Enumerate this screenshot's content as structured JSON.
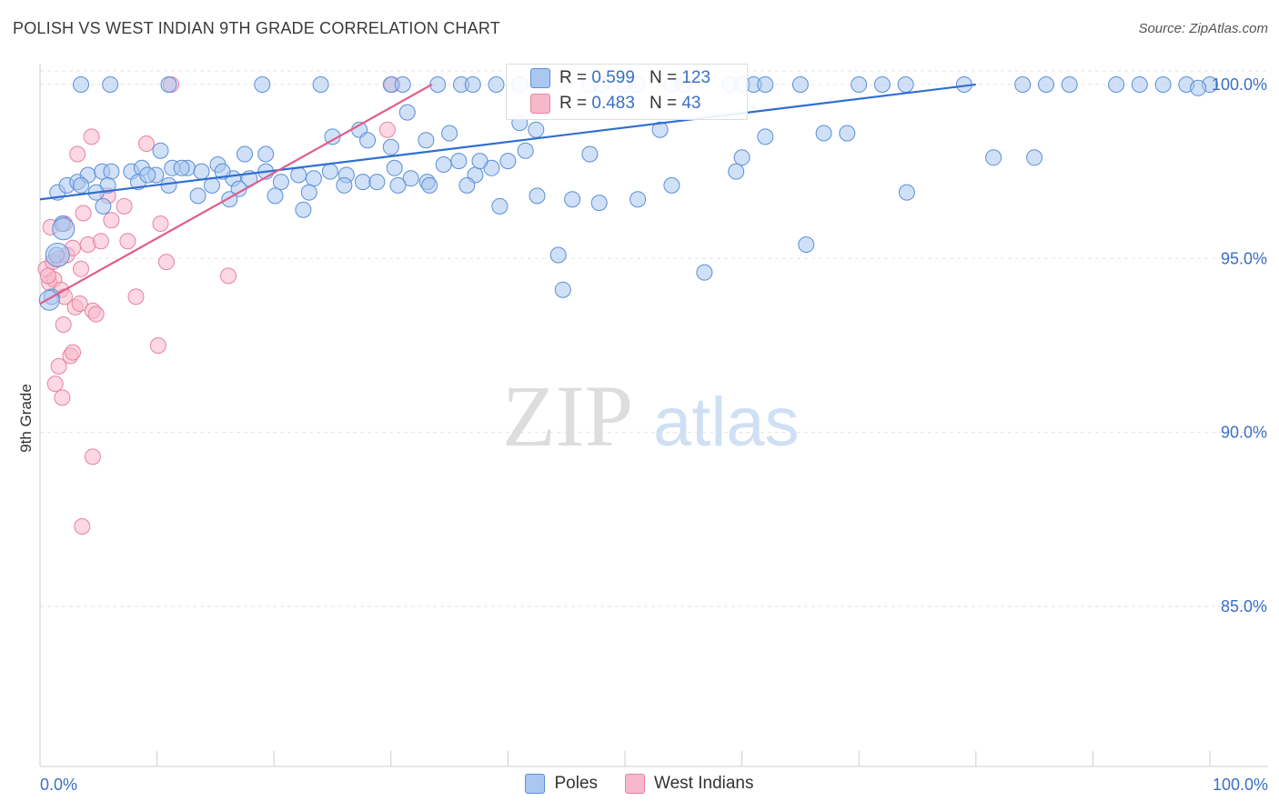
{
  "header": {
    "title": "POLISH VS WEST INDIAN 9TH GRADE CORRELATION CHART",
    "source": "Source: ZipAtlas.com"
  },
  "watermark": {
    "zip": "ZIP",
    "atlas": "atlas"
  },
  "colors": {
    "poles_fill": "#a9c7f0",
    "poles_stroke": "#5b8fd6",
    "poles_line": "#2f6fd1",
    "wi_fill": "#f7b8cc",
    "wi_stroke": "#e8829f",
    "wi_line": "#e05c8a",
    "axis_text": "#3a6fc4",
    "grid": "#e3e3e3"
  },
  "stats": {
    "poles": {
      "r_label": "R =",
      "r_value": "0.599",
      "n_label": "N =",
      "n_value": "123"
    },
    "west_indians": {
      "r_label": "R =",
      "r_value": "0.483",
      "n_label": "N =",
      "n_value": "43"
    }
  },
  "legend": {
    "poles": "Poles",
    "west_indians": "West Indians"
  },
  "chart_data": {
    "type": "scatter",
    "title": "POLISH VS WEST INDIAN 9TH GRADE CORRELATION CHART",
    "xlabel": "",
    "ylabel": "9th Grade",
    "xlim": [
      0,
      100
    ],
    "ylim": [
      80.4,
      100.6
    ],
    "x_tick_labels": [
      "0.0%",
      "100.0%"
    ],
    "y_ticks": [
      85,
      90,
      95,
      100
    ],
    "y_tick_labels": [
      "85.0%",
      "90.0%",
      "95.0%",
      "100.0%"
    ],
    "grid": true,
    "legend_position": "bottom-center",
    "series": [
      {
        "name": "Poles",
        "trend": {
          "x": [
            0,
            80
          ],
          "y": [
            96.7,
            100.0
          ]
        },
        "points": [
          [
            3.5,
            100
          ],
          [
            6,
            100
          ],
          [
            11,
            100
          ],
          [
            19,
            100
          ],
          [
            24,
            100
          ],
          [
            30,
            100
          ],
          [
            31,
            100
          ],
          [
            34,
            100
          ],
          [
            36,
            100
          ],
          [
            37,
            100
          ],
          [
            39,
            100
          ],
          [
            41,
            100
          ],
          [
            47,
            100
          ],
          [
            48,
            100
          ],
          [
            50,
            100
          ],
          [
            51,
            100
          ],
          [
            54,
            100
          ],
          [
            55,
            100
          ],
          [
            59,
            100
          ],
          [
            60,
            100
          ],
          [
            61,
            100
          ],
          [
            62,
            100
          ],
          [
            65,
            100
          ],
          [
            70,
            100
          ],
          [
            72,
            100
          ],
          [
            74,
            100
          ],
          [
            79,
            100
          ],
          [
            84,
            100
          ],
          [
            86,
            100
          ],
          [
            88,
            100
          ],
          [
            92,
            100
          ],
          [
            94,
            100
          ],
          [
            96,
            100
          ],
          [
            98,
            100
          ],
          [
            100,
            100
          ],
          [
            99,
            99.9
          ],
          [
            31.4,
            99.2
          ],
          [
            33,
            98.4
          ],
          [
            53,
            98.7
          ],
          [
            62,
            98.5
          ],
          [
            67,
            98.6
          ],
          [
            69,
            98.6
          ],
          [
            41,
            98.9
          ],
          [
            27.3,
            98.7
          ],
          [
            35,
            98.6
          ],
          [
            25,
            98.5
          ],
          [
            28,
            98.4
          ],
          [
            30,
            98.2
          ],
          [
            10.3,
            98.1
          ],
          [
            19.3,
            98
          ],
          [
            17.5,
            98
          ],
          [
            47,
            98
          ],
          [
            60,
            97.9
          ],
          [
            85,
            97.9
          ],
          [
            1.5,
            96.9
          ],
          [
            2.3,
            97.1
          ],
          [
            3.2,
            97.2
          ],
          [
            4.1,
            97.4
          ],
          [
            5.3,
            97.5
          ],
          [
            6.1,
            97.5
          ],
          [
            7.8,
            97.5
          ],
          [
            8.7,
            97.6
          ],
          [
            9.9,
            97.4
          ],
          [
            11.3,
            97.6
          ],
          [
            12.6,
            97.6
          ],
          [
            13.8,
            97.5
          ],
          [
            15.2,
            97.7
          ],
          [
            16.5,
            97.3
          ],
          [
            17.9,
            97.3
          ],
          [
            19.3,
            97.5
          ],
          [
            20.6,
            97.2
          ],
          [
            22.1,
            97.4
          ],
          [
            23.4,
            97.3
          ],
          [
            24.8,
            97.5
          ],
          [
            26.2,
            97.4
          ],
          [
            27.6,
            97.2
          ],
          [
            28.8,
            97.2
          ],
          [
            30.3,
            97.6
          ],
          [
            31.7,
            97.3
          ],
          [
            33.1,
            97.2
          ],
          [
            34.5,
            97.7
          ],
          [
            35.8,
            97.8
          ],
          [
            37.2,
            97.4
          ],
          [
            38.6,
            97.6
          ],
          [
            40,
            97.8
          ],
          [
            41.5,
            98.1
          ],
          [
            5.8,
            97.1
          ],
          [
            8.4,
            97.2
          ],
          [
            11,
            97.1
          ],
          [
            14.7,
            97.1
          ],
          [
            17,
            97
          ],
          [
            20.1,
            96.8
          ],
          [
            23,
            96.9
          ],
          [
            26,
            97.1
          ],
          [
            30.6,
            97.1
          ],
          [
            33.3,
            97.1
          ],
          [
            36.5,
            97.1
          ],
          [
            39.3,
            96.5
          ],
          [
            42.5,
            96.8
          ],
          [
            45.5,
            96.7
          ],
          [
            47.8,
            96.6
          ],
          [
            51.1,
            96.7
          ],
          [
            54,
            97.1
          ],
          [
            59.5,
            97.5
          ],
          [
            4.8,
            96.9
          ],
          [
            5.4,
            96.5
          ],
          [
            13.5,
            96.8
          ],
          [
            16.2,
            96.7
          ],
          [
            22.5,
            96.4
          ],
          [
            1.9,
            96.0
          ],
          [
            1.4,
            95.1
          ],
          [
            44.3,
            95.1
          ],
          [
            65.5,
            95.4
          ],
          [
            56.8,
            94.6
          ],
          [
            44.7,
            94.1
          ],
          [
            1,
            93.9
          ],
          [
            37.6,
            97.8
          ],
          [
            42.4,
            98.7
          ],
          [
            74.1,
            96.9
          ],
          [
            81.5,
            97.9
          ],
          [
            3.5,
            97.1
          ],
          [
            9.2,
            97.4
          ],
          [
            12.1,
            97.6
          ],
          [
            15.6,
            97.5
          ]
        ]
      },
      {
        "name": "West Indians",
        "trend": {
          "x": [
            0,
            33.5
          ],
          "y": [
            93.7,
            100.0
          ]
        },
        "points": [
          [
            11.2,
            100
          ],
          [
            30.1,
            100
          ],
          [
            4.4,
            98.5
          ],
          [
            3.2,
            98
          ],
          [
            9.1,
            98.3
          ],
          [
            0.5,
            94.7
          ],
          [
            0.8,
            94.3
          ],
          [
            1.1,
            94.9
          ],
          [
            1.6,
            95
          ],
          [
            2.3,
            95.1
          ],
          [
            2.8,
            95.3
          ],
          [
            3.5,
            94.7
          ],
          [
            4.1,
            95.4
          ],
          [
            5.2,
            95.5
          ],
          [
            6.1,
            96.1
          ],
          [
            5.8,
            96.8
          ],
          [
            7.2,
            96.5
          ],
          [
            10.3,
            96
          ],
          [
            10.8,
            94.9
          ],
          [
            16.1,
            94.5
          ],
          [
            8.2,
            93.9
          ],
          [
            1.2,
            94.4
          ],
          [
            1.8,
            94.1
          ],
          [
            2.1,
            93.9
          ],
          [
            3,
            93.6
          ],
          [
            3.4,
            93.7
          ],
          [
            4.5,
            93.5
          ],
          [
            4.8,
            93.4
          ],
          [
            2,
            93.1
          ],
          [
            2.6,
            92.2
          ],
          [
            2.8,
            92.3
          ],
          [
            1.6,
            91.9
          ],
          [
            1.3,
            91.4
          ],
          [
            1.9,
            91
          ],
          [
            10.1,
            92.5
          ],
          [
            0.9,
            95.9
          ],
          [
            2.1,
            96
          ],
          [
            3.7,
            96.3
          ],
          [
            7.5,
            95.5
          ],
          [
            29.7,
            98.7
          ],
          [
            4.5,
            89.3
          ],
          [
            3.6,
            87.3
          ],
          [
            0.7,
            94.5
          ]
        ]
      }
    ]
  }
}
